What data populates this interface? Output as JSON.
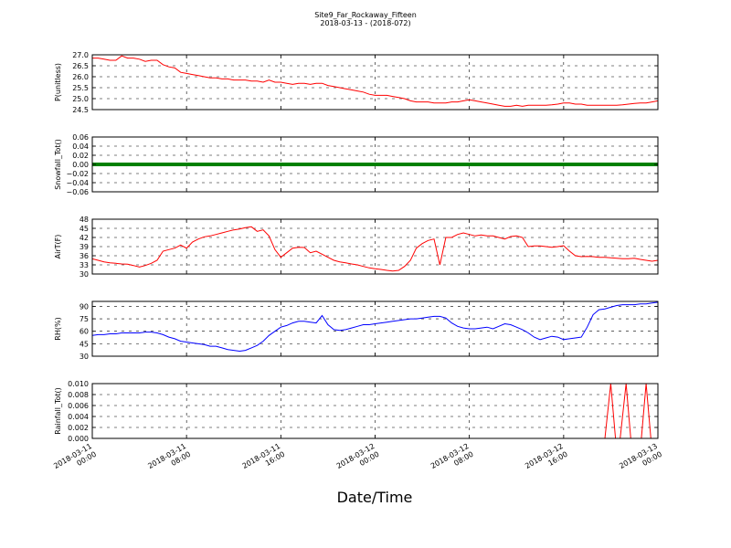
{
  "figure": {
    "title_line1": "Site9_Far_Rockaway_Fifteen",
    "title_line2": "2018-03-13 - (2018-072)",
    "xlabel": "Date/Time"
  },
  "chart_data": [
    {
      "type": "line",
      "ylabel": "P(unitless)",
      "ylim": [
        24.5,
        27.0
      ],
      "yticks": [
        "27.0",
        "26.5",
        "26.0",
        "25.5",
        "25.0",
        "24.5"
      ],
      "ytick_values": [
        27.0,
        26.5,
        26.0,
        25.5,
        25.0,
        24.5
      ],
      "grid": true,
      "series": [
        {
          "color": "#ff0000",
          "x": [
            0,
            0.5,
            1,
            1.5,
            2,
            2.5,
            3,
            3.5,
            4,
            4.5,
            5,
            5.5,
            6,
            6.5,
            7,
            7.5,
            8,
            8.5,
            9,
            9.5,
            10,
            10.5,
            11,
            11.5,
            12,
            12.5,
            13,
            13.5,
            14,
            14.5,
            15,
            15.5,
            16,
            16.5,
            17,
            17.5,
            18,
            18.5,
            19,
            19.5,
            20,
            20.5,
            21,
            21.5,
            22,
            22.5,
            23,
            23.5,
            24,
            24.5,
            25,
            25.5,
            26,
            26.5,
            27,
            27.5,
            28,
            28.5,
            29,
            29.5,
            30,
            30.5,
            31,
            31.5,
            32,
            32.5,
            33,
            33.5,
            34,
            34.5,
            35,
            35.5,
            36,
            36.5,
            37,
            37.5,
            38,
            38.5,
            39,
            39.5,
            40,
            40.5,
            41,
            41.5,
            42,
            42.5,
            43,
            43.5,
            44,
            44.5,
            45,
            45.5,
            46,
            46.5,
            47,
            47.5,
            48
          ],
          "y": [
            26.85,
            26.85,
            26.8,
            26.75,
            26.75,
            26.95,
            26.85,
            26.85,
            26.8,
            26.7,
            26.75,
            26.75,
            26.55,
            26.45,
            26.4,
            26.2,
            26.15,
            26.1,
            26.05,
            26.0,
            25.95,
            25.95,
            25.9,
            25.9,
            25.85,
            25.85,
            25.85,
            25.8,
            25.8,
            25.75,
            25.85,
            25.75,
            25.75,
            25.7,
            25.65,
            25.7,
            25.7,
            25.65,
            25.7,
            25.7,
            25.6,
            25.55,
            25.5,
            25.45,
            25.4,
            25.35,
            25.3,
            25.2,
            25.15,
            25.15,
            25.15,
            25.1,
            25.05,
            25.0,
            24.9,
            24.85,
            24.85,
            24.85,
            24.8,
            24.8,
            24.8,
            24.85,
            24.85,
            24.9,
            24.95,
            24.9,
            24.85,
            24.8,
            24.75,
            24.7,
            24.65,
            24.65,
            24.7,
            24.65,
            24.7,
            24.7,
            24.7,
            24.7,
            24.72,
            24.75,
            24.8,
            24.8,
            24.75,
            24.75,
            24.7,
            24.7,
            24.7,
            24.7,
            24.7,
            24.7,
            24.72,
            24.75,
            24.78,
            24.8,
            24.8,
            24.85,
            24.9
          ]
        }
      ]
    },
    {
      "type": "line",
      "ylabel": "Snowfall_Tot()",
      "ylim": [
        -0.06,
        0.06
      ],
      "yticks": [
        "0.06",
        "0.04",
        "0.02",
        "0.00",
        "−0.02",
        "−0.04",
        "−0.06"
      ],
      "ytick_values": [
        0.06,
        0.04,
        0.02,
        0.0,
        -0.02,
        -0.04,
        -0.06
      ],
      "grid": true,
      "series": [
        {
          "color": "#008000",
          "x": [
            0,
            48
          ],
          "y": [
            0.0,
            0.0
          ]
        }
      ]
    },
    {
      "type": "line",
      "ylabel": "AirT(F)",
      "ylim": [
        30,
        48
      ],
      "yticks": [
        "48",
        "45",
        "42",
        "39",
        "36",
        "33",
        "30"
      ],
      "ytick_values": [
        48,
        45,
        42,
        39,
        36,
        33,
        30
      ],
      "grid": true,
      "series": [
        {
          "color": "#ff0000",
          "x": [
            0,
            0.5,
            1,
            1.5,
            2,
            2.5,
            3,
            3.5,
            4,
            4.5,
            5,
            5.5,
            6,
            6.5,
            7,
            7.5,
            8,
            8.5,
            9,
            9.5,
            10,
            10.5,
            11,
            11.5,
            12,
            12.5,
            13,
            13.5,
            14,
            14.5,
            15,
            15.5,
            16,
            16.5,
            17,
            17.5,
            18,
            18.5,
            19,
            19.5,
            20,
            20.5,
            21,
            21.5,
            22,
            22.5,
            23,
            23.5,
            24,
            24.5,
            25,
            25.5,
            26,
            26.5,
            27,
            27.5,
            28,
            28.5,
            29,
            29.5,
            30,
            30.5,
            31,
            31.5,
            32,
            32.5,
            33,
            33.5,
            34,
            34.5,
            35,
            35.5,
            36,
            36.5,
            37,
            37.5,
            38,
            38.5,
            39,
            39.5,
            40,
            40.5,
            41,
            41.5,
            42,
            42.5,
            43,
            43.5,
            44,
            44.5,
            45,
            45.5,
            46,
            46.5,
            47,
            47.5,
            48
          ],
          "y": [
            35,
            34.5,
            34,
            33.7,
            33.5,
            33.3,
            33.2,
            32.8,
            32.3,
            32.8,
            33.5,
            34.5,
            37.5,
            38,
            38.5,
            39.5,
            38.5,
            40.5,
            41.5,
            42.2,
            42.5,
            43,
            43.5,
            44,
            44.5,
            44.8,
            45.2,
            45.5,
            44,
            44.5,
            42.5,
            38,
            35.5,
            37,
            38.5,
            38.8,
            38.7,
            37,
            37.5,
            36.5,
            35.5,
            34.5,
            34,
            33.7,
            33.3,
            33,
            32.5,
            32,
            31.7,
            31.5,
            31.2,
            31,
            31.2,
            32.5,
            34.5,
            38.5,
            40,
            41,
            41.5,
            33,
            42,
            42,
            43,
            43.5,
            43,
            42.5,
            42.8,
            42.5,
            42.5,
            42,
            41.5,
            42.3,
            42.5,
            42,
            39,
            39.2,
            39.2,
            39,
            38.8,
            39,
            39.3,
            37.5,
            36,
            35.7,
            35.8,
            35.7,
            35.5,
            35.5,
            35.3,
            35.2,
            35,
            35,
            35.2,
            34.8,
            34.5,
            34.2,
            34.5
          ]
        }
      ]
    },
    {
      "type": "line",
      "ylabel": "RH(%)",
      "ylim": [
        30,
        96
      ],
      "yticks": [
        "90",
        "75",
        "60",
        "45",
        "30"
      ],
      "ytick_values": [
        90,
        75,
        60,
        45,
        30
      ],
      "grid": true,
      "series": [
        {
          "color": "#0000ff",
          "x": [
            0,
            0.5,
            1,
            1.5,
            2,
            2.5,
            3,
            3.5,
            4,
            4.5,
            5,
            5.5,
            6,
            6.5,
            7,
            7.5,
            8,
            8.5,
            9,
            9.5,
            10,
            10.5,
            11,
            11.5,
            12,
            12.5,
            13,
            13.5,
            14,
            14.5,
            15,
            15.5,
            16,
            16.5,
            17,
            17.5,
            18,
            18.5,
            19,
            19.5,
            20,
            20.5,
            21,
            21.5,
            22,
            22.5,
            23,
            23.5,
            24,
            24.5,
            25,
            25.5,
            26,
            26.5,
            27,
            27.5,
            28,
            28.5,
            29,
            29.5,
            30,
            30.5,
            31,
            31.5,
            32,
            32.5,
            33,
            33.5,
            34,
            34.5,
            35,
            35.5,
            36,
            36.5,
            37,
            37.5,
            38,
            38.5,
            39,
            39.5,
            40,
            40.5,
            41,
            41.5,
            42,
            42.5,
            43,
            43.5,
            44,
            44.5,
            45,
            45.5,
            46,
            46.5,
            47,
            47.5,
            48
          ],
          "y": [
            55,
            56,
            56,
            57,
            57,
            58,
            58,
            58,
            58,
            59,
            59,
            58,
            56,
            53,
            51,
            48,
            47,
            46,
            45,
            44,
            42,
            42,
            40,
            38,
            37,
            36,
            37,
            40,
            43,
            48,
            55,
            60,
            65,
            67,
            70,
            72,
            72,
            71,
            70,
            79,
            68,
            62,
            61,
            62,
            64,
            66,
            68,
            68,
            69,
            70,
            71,
            72,
            73,
            74,
            75,
            75,
            76,
            77,
            78,
            78,
            76,
            70,
            66,
            64,
            63,
            63,
            64,
            65,
            63,
            66,
            69,
            68,
            65,
            62,
            58,
            53,
            50,
            52,
            54,
            53,
            50,
            51,
            52,
            53,
            65,
            80,
            86,
            87,
            89,
            91,
            92,
            92,
            92,
            93,
            93,
            94,
            95
          ]
        }
      ]
    },
    {
      "type": "line",
      "ylabel": "Rainfall_Tot()",
      "ylim": [
        0.0,
        0.01
      ],
      "yticks": [
        "0.010",
        "0.008",
        "0.006",
        "0.004",
        "0.002",
        "0.000"
      ],
      "ytick_values": [
        0.01,
        0.008,
        0.006,
        0.004,
        0.002,
        0.0
      ],
      "grid": true,
      "series": [
        {
          "color": "#ff0000",
          "x": [
            0,
            43.5,
            44,
            44.4,
            44.8,
            45.3,
            45.7,
            46.1,
            46.6,
            47.0,
            47.4,
            47.8,
            48
          ],
          "y": [
            0,
            0,
            0.01,
            0.0,
            0.0,
            0.01,
            0.0,
            0.0,
            0.0,
            0.01,
            0.0,
            0.0,
            0.0
          ]
        }
      ]
    }
  ],
  "x_axis": {
    "xlim": [
      0,
      48
    ],
    "tick_values": [
      0,
      8,
      16,
      24,
      32,
      40,
      48
    ],
    "tick_labels_line1": [
      "2018-03-11",
      "2018-03-11",
      "2018-03-11",
      "2018-03-12",
      "2018-03-12",
      "2018-03-12",
      "2018-03-13"
    ],
    "tick_labels_line2": [
      "00:00",
      "08:00",
      "16:00",
      "00:00",
      "08:00",
      "16:00",
      "00:00"
    ]
  }
}
